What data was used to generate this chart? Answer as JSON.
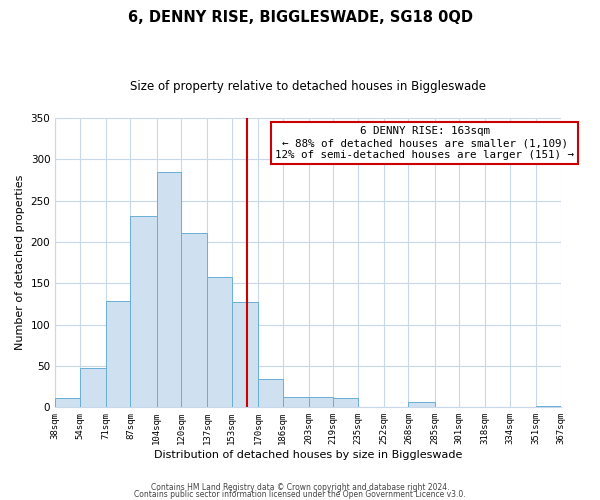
{
  "title": "6, DENNY RISE, BIGGLESWADE, SG18 0QD",
  "subtitle": "Size of property relative to detached houses in Biggleswade",
  "xlabel": "Distribution of detached houses by size in Biggleswade",
  "ylabel": "Number of detached properties",
  "bar_edges": [
    38,
    54,
    71,
    87,
    104,
    120,
    137,
    153,
    170,
    186,
    203,
    219,
    235,
    252,
    268,
    285,
    301,
    318,
    334,
    351,
    367
  ],
  "bar_heights": [
    11,
    47,
    128,
    231,
    284,
    211,
    157,
    127,
    34,
    13,
    12,
    11,
    0,
    0,
    7,
    0,
    0,
    0,
    0,
    2
  ],
  "bar_color": "#cfe0f0",
  "bar_edge_color": "#6aaed6",
  "property_line_x": 163,
  "property_line_color": "#cc0000",
  "annotation_title": "6 DENNY RISE: 163sqm",
  "annotation_line1": "← 88% of detached houses are smaller (1,109)",
  "annotation_line2": "12% of semi-detached houses are larger (151) →",
  "annotation_box_color": "#ffffff",
  "annotation_box_edge_color": "#cc0000",
  "ylim": [
    0,
    350
  ],
  "tick_labels": [
    "38sqm",
    "54sqm",
    "71sqm",
    "87sqm",
    "104sqm",
    "120sqm",
    "137sqm",
    "153sqm",
    "170sqm",
    "186sqm",
    "203sqm",
    "219sqm",
    "235sqm",
    "252sqm",
    "268sqm",
    "285sqm",
    "301sqm",
    "318sqm",
    "334sqm",
    "351sqm",
    "367sqm"
  ],
  "footer1": "Contains HM Land Registry data © Crown copyright and database right 2024.",
  "footer2": "Contains public sector information licensed under the Open Government Licence v3.0.",
  "background_color": "#ffffff",
  "grid_color": "#c8d8ea",
  "title_fontsize": 10.5,
  "subtitle_fontsize": 8.5,
  "ylabel_fontsize": 8,
  "xlabel_fontsize": 8,
  "tick_fontsize": 6.5,
  "footer_fontsize": 5.5,
  "annot_fontsize": 7.8
}
